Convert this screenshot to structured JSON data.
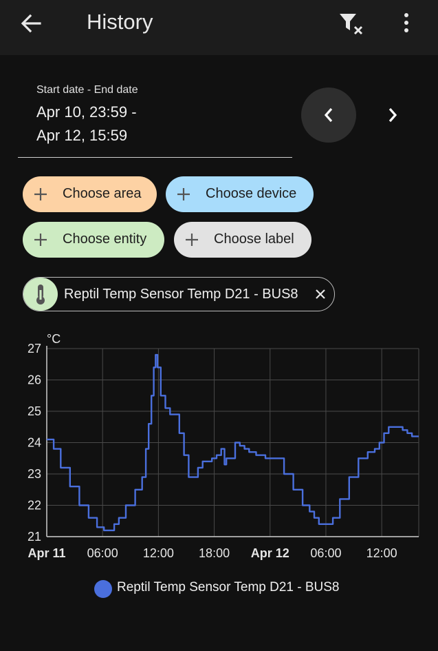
{
  "header": {
    "title": "History",
    "icons": {
      "back": "arrow-left-icon",
      "filter": "filter-remove-icon",
      "more": "dots-vertical-icon"
    }
  },
  "date_range": {
    "label": "Start date - End date",
    "start": "Apr 10, 23:59 -",
    "end": "Apr 12, 15:59"
  },
  "chips": {
    "area": "Choose area",
    "device": "Choose device",
    "entity": "Choose entity",
    "label": "Choose label"
  },
  "selected_entity": {
    "name": "Reptil Temp Sensor Temp D21 - BUS8",
    "icon": "thermometer-icon"
  },
  "chart_data": {
    "type": "line",
    "unit": "°C",
    "ylim": [
      21,
      27
    ],
    "yticks": [
      "21",
      "22",
      "23",
      "24",
      "25",
      "26",
      "27"
    ],
    "xticks": [
      {
        "label": "Apr 11",
        "hours": 0,
        "bold": true
      },
      {
        "label": "06:00",
        "hours": 6,
        "bold": false
      },
      {
        "label": "12:00",
        "hours": 12,
        "bold": false
      },
      {
        "label": "18:00",
        "hours": 18,
        "bold": false
      },
      {
        "label": "Apr 12",
        "hours": 24,
        "bold": true
      },
      {
        "label": "06:00",
        "hours": 30,
        "bold": false
      },
      {
        "label": "12:00",
        "hours": 36,
        "bold": false
      }
    ],
    "xlim_hours": [
      0,
      39.98
    ],
    "grid": true,
    "legend": "bottom-center",
    "series": [
      {
        "name": "Reptil Temp Sensor Temp D21 - BUS8",
        "color": "#4a6fdd",
        "hours": [
          0,
          0.5,
          1,
          2,
          3,
          4,
          5,
          5.8,
          6.5,
          7,
          7.5,
          8,
          9,
          10,
          10.5,
          10.8,
          11.1,
          11.4,
          11.6,
          11.8,
          12,
          12.5,
          13,
          13.5,
          14,
          14.5,
          15,
          15.5,
          16,
          16.5,
          17,
          17.5,
          18,
          18.5,
          19,
          19.2,
          19.4,
          19.6,
          20,
          20.5,
          21,
          21.5,
          22,
          23,
          24,
          25,
          26,
          27,
          28,
          28.5,
          29,
          29.5,
          30,
          30.5,
          31,
          32,
          33,
          34,
          35,
          35.5,
          36,
          36.5,
          37,
          37.5,
          38,
          38.5,
          39,
          39.5,
          39.98
        ],
        "values": [
          24.1,
          24.1,
          23.8,
          23.2,
          22.6,
          22.0,
          21.6,
          21.3,
          21.2,
          21.2,
          21.4,
          21.6,
          22.0,
          22.5,
          22.9,
          23.8,
          24.6,
          25.5,
          26.4,
          26.8,
          26.4,
          25.5,
          25.1,
          24.9,
          24.9,
          24.3,
          23.6,
          22.9,
          22.9,
          23.2,
          23.4,
          23.4,
          23.5,
          23.6,
          23.8,
          23.3,
          23.5,
          23.5,
          23.5,
          24.0,
          23.9,
          23.8,
          23.7,
          23.6,
          23.5,
          23.5,
          23.0,
          22.5,
          22.0,
          21.8,
          21.6,
          21.4,
          21.4,
          21.4,
          21.6,
          22.2,
          22.9,
          23.5,
          23.7,
          23.8,
          24.0,
          24.3,
          24.5,
          24.5,
          24.5,
          24.4,
          24.3,
          24.2,
          24.2
        ]
      }
    ]
  }
}
